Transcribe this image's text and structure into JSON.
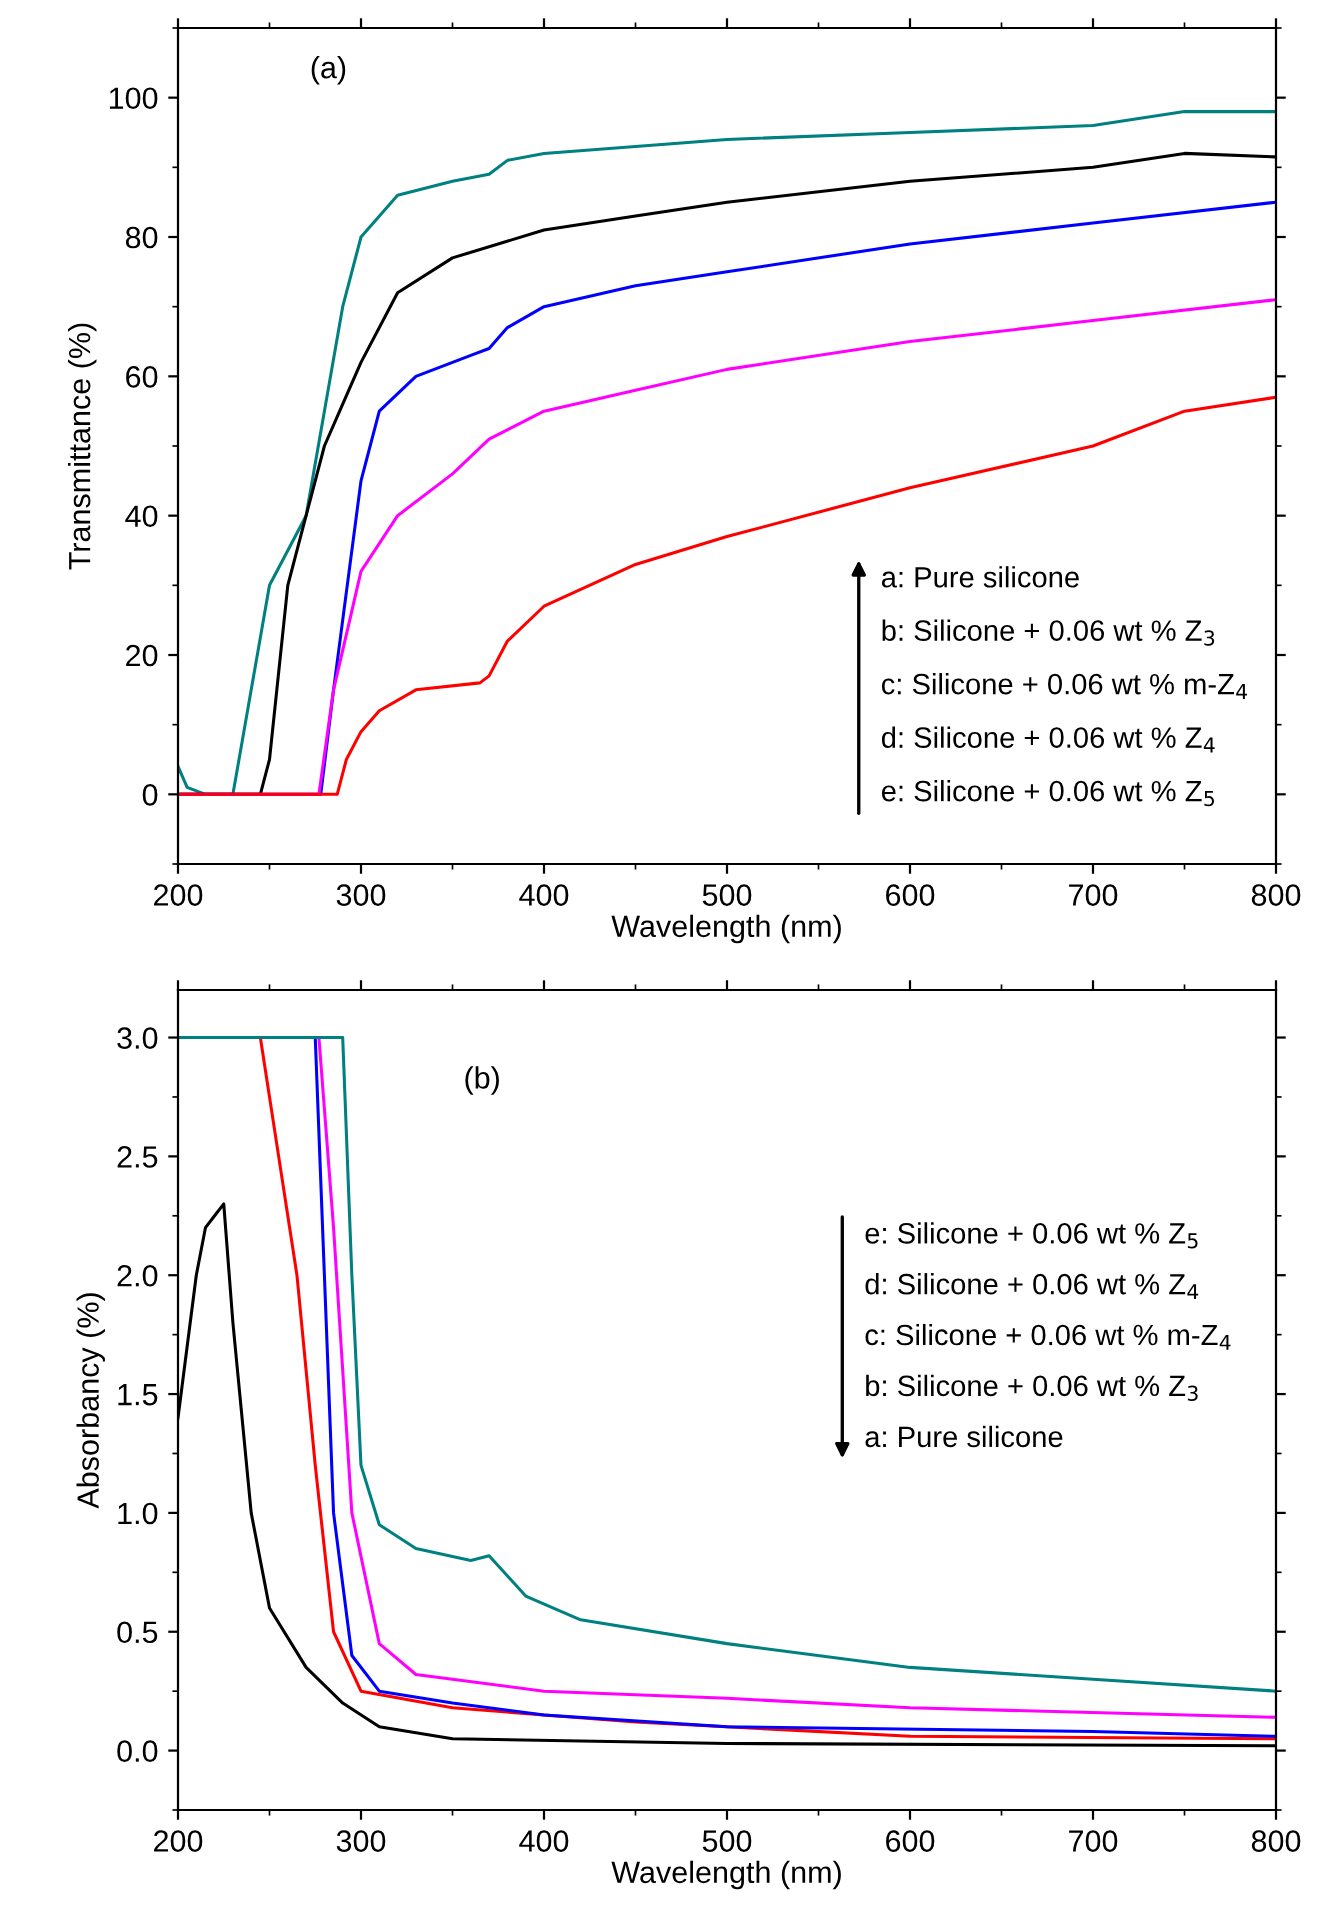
{
  "chart_data": [
    {
      "type": "line",
      "xlabel": "Wavelength (nm)",
      "ylabel": "Transmittance (%)",
      "xlim": [
        200,
        800
      ],
      "ylim": [
        -10,
        110
      ],
      "xticks": [
        200,
        300,
        400,
        500,
        600,
        700,
        800
      ],
      "yticks": [
        0,
        20,
        40,
        60,
        80,
        100
      ],
      "grid": false,
      "legend": false,
      "annotations": [
        "(a)",
        "a: Pure silicone",
        "b: Silicone + 0.06 wt % Z$_{3}$",
        "c: Silicone + 0.06 wt % m-Z$_{4}$",
        "d: Silicone + 0.06 wt % Z$_{4}$",
        "e: Silicone + 0.06 wt % Z$_{5}$"
      ],
      "series": [
        {
          "color": "#008080",
          "x": [
            200,
            205,
            215,
            230,
            240,
            250,
            260,
            270,
            280,
            290,
            300,
            320,
            350,
            370,
            380,
            400,
            450,
            500,
            600,
            700,
            750,
            800
          ],
          "values": [
            4,
            1,
            0,
            0,
            15,
            30,
            35,
            40,
            55,
            70,
            80,
            86,
            88,
            89,
            91,
            92,
            93,
            94,
            95,
            96,
            98,
            98
          ]
        },
        {
          "color": "#000000",
          "x": [
            200,
            245,
            250,
            260,
            270,
            280,
            290,
            300,
            320,
            350,
            400,
            450,
            500,
            600,
            700,
            750,
            800
          ],
          "values": [
            0,
            0,
            5,
            30,
            40,
            50,
            56,
            62,
            72,
            77,
            81,
            83,
            85,
            88,
            90,
            92,
            91.5
          ]
        },
        {
          "color": "#0000ff",
          "x": [
            200,
            278,
            285,
            290,
            300,
            310,
            330,
            360,
            370,
            380,
            400,
            450,
            500,
            600,
            700,
            800
          ],
          "values": [
            0,
            0,
            15,
            25,
            45,
            55,
            60,
            63,
            64,
            67,
            70,
            73,
            75,
            79,
            82,
            85
          ]
        },
        {
          "color": "#ff00ff",
          "x": [
            200,
            277,
            285,
            300,
            320,
            350,
            370,
            400,
            450,
            500,
            600,
            700,
            800
          ],
          "values": [
            0,
            0,
            15,
            32,
            40,
            46,
            51,
            55,
            58,
            61,
            65,
            68,
            71
          ]
        },
        {
          "color": "#ff0000",
          "x": [
            200,
            287,
            292,
            300,
            310,
            330,
            365,
            370,
            380,
            400,
            450,
            500,
            600,
            700,
            750,
            800
          ],
          "values": [
            0,
            0,
            5,
            9,
            12,
            15,
            16,
            17,
            22,
            27,
            33,
            37,
            44,
            50,
            55,
            57
          ]
        }
      ]
    },
    {
      "type": "line",
      "xlabel": "Wavelength (nm)",
      "ylabel": "Absorbancy (%)",
      "xlim": [
        200,
        800
      ],
      "ylim": [
        -0.25,
        3.2
      ],
      "xticks": [
        200,
        300,
        400,
        500,
        600,
        700,
        800
      ],
      "yticks": [
        {
          "value": 0,
          "label": "0.0"
        },
        0.5,
        {
          "value": 1,
          "label": "1.0"
        },
        1.5,
        {
          "value": 2,
          "label": "2.0"
        },
        2.5,
        {
          "value": 3,
          "label": "3.0"
        }
      ],
      "grid": false,
      "legend": false,
      "annotations": [
        "(b)",
        "e: Silicone + 0.06 wt % Z$_{5}$",
        "d: Silicone + 0.06 wt % Z$_{4}$",
        "c: Silicone + 0.06 wt % m-Z$_{4}$",
        "b: Silicone + 0.06 wt % Z$_{3}$",
        "a: Pure silicone"
      ],
      "series": [
        {
          "color": "#000000",
          "x": [
            200,
            205,
            210,
            215,
            220,
            225,
            230,
            240,
            250,
            270,
            290,
            310,
            350,
            500,
            800
          ],
          "values": [
            1.4,
            1.7,
            2.0,
            2.2,
            2.25,
            2.3,
            1.8,
            1.0,
            0.6,
            0.35,
            0.2,
            0.1,
            0.05,
            0.03,
            0.02
          ]
        },
        {
          "color": "#ff0000",
          "x": [
            200,
            245,
            255,
            265,
            275,
            285,
            300,
            350,
            400,
            450,
            600,
            800
          ],
          "values": [
            3.0,
            3.0,
            2.5,
            2.0,
            1.2,
            0.5,
            0.25,
            0.18,
            0.15,
            0.12,
            0.06,
            0.05
          ]
        },
        {
          "color": "#0000ff",
          "x": [
            200,
            275,
            280,
            285,
            295,
            310,
            350,
            400,
            500,
            700,
            800
          ],
          "values": [
            3.0,
            3.0,
            2.0,
            1.0,
            0.4,
            0.25,
            0.2,
            0.15,
            0.1,
            0.08,
            0.06
          ]
        },
        {
          "color": "#ff00ff",
          "x": [
            200,
            277,
            285,
            295,
            310,
            330,
            350,
            400,
            500,
            600,
            800
          ],
          "values": [
            3.0,
            3.0,
            2.2,
            1.0,
            0.45,
            0.32,
            0.3,
            0.25,
            0.22,
            0.18,
            0.14
          ]
        },
        {
          "color": "#008080",
          "x": [
            200,
            290,
            295,
            300,
            310,
            330,
            360,
            370,
            390,
            420,
            500,
            600,
            700,
            800
          ],
          "values": [
            3.0,
            3.0,
            2.0,
            1.2,
            0.95,
            0.85,
            0.8,
            0.82,
            0.65,
            0.55,
            0.45,
            0.35,
            0.3,
            0.25
          ]
        }
      ]
    }
  ]
}
